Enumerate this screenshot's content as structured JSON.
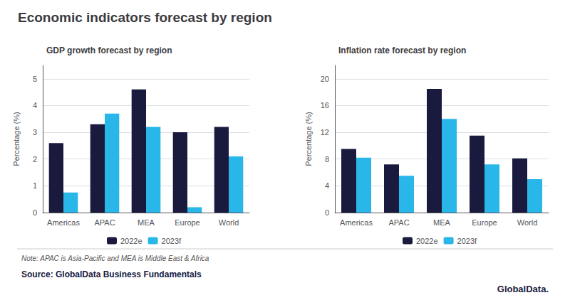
{
  "title": "Economic indicators forecast by region",
  "chart_data": [
    {
      "type": "bar",
      "title": "GDP growth forecast by region",
      "categories": [
        "Americas",
        "APAC",
        "MEA",
        "Europe",
        "World"
      ],
      "series": [
        {
          "name": "2022e",
          "color": "#1a1a3e",
          "values": [
            2.6,
            3.3,
            4.6,
            3.0,
            3.2
          ]
        },
        {
          "name": "2023f",
          "color": "#29b6e8",
          "values": [
            0.75,
            3.7,
            3.2,
            0.2,
            2.1
          ]
        }
      ],
      "ylabel": "Percentage (%)",
      "ylim": [
        0,
        5.5
      ],
      "yticks": [
        0,
        1,
        2,
        3,
        4,
        5
      ],
      "grid": true,
      "legend": "bottom"
    },
    {
      "type": "bar",
      "title": "Inflation rate forecast by region",
      "categories": [
        "Americas",
        "APAC",
        "MEA",
        "Europe",
        "World"
      ],
      "series": [
        {
          "name": "2022e",
          "color": "#1a1a3e",
          "values": [
            9.5,
            7.2,
            18.5,
            11.5,
            8.1
          ]
        },
        {
          "name": "2023f",
          "color": "#29b6e8",
          "values": [
            8.2,
            5.5,
            14.0,
            7.2,
            5.0
          ]
        }
      ],
      "ylabel": "Percentage (%)",
      "ylim": [
        0,
        22
      ],
      "yticks": [
        0,
        4,
        8,
        12,
        16,
        20
      ],
      "grid": true,
      "legend": "bottom"
    }
  ],
  "annotations": [
    "Note: APAC is Asia-Pacific and MEA is Middle East & Africa",
    "Source: GlobalData Business Fundamentals",
    "GlobalData."
  ]
}
